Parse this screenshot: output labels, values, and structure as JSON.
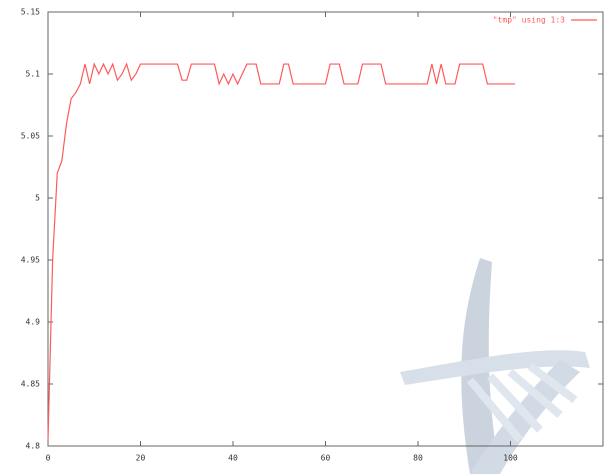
{
  "chart_data": {
    "type": "line",
    "series": [
      {
        "name": "\"tmp\" using 1:3",
        "color": "#ff5a5a",
        "x": [
          0,
          1,
          2,
          3,
          4,
          5,
          6,
          7,
          8,
          9,
          10,
          11,
          12,
          13,
          14,
          15,
          16,
          17,
          18,
          19,
          20,
          21,
          22,
          23,
          24,
          25,
          26,
          27,
          28,
          29,
          30,
          31,
          32,
          33,
          34,
          35,
          36,
          37,
          38,
          39,
          40,
          41,
          42,
          43,
          44,
          45,
          46,
          47,
          48,
          49,
          50,
          51,
          52,
          53,
          54,
          55,
          56,
          57,
          58,
          59,
          60,
          61,
          62,
          63,
          64,
          65,
          66,
          67,
          68,
          69,
          70,
          71,
          72,
          73,
          74,
          75,
          76,
          77,
          78,
          79,
          80,
          81,
          82,
          83,
          84,
          85,
          86,
          87,
          88,
          89,
          90,
          91,
          92,
          93,
          94,
          95,
          96,
          97,
          98,
          99,
          100,
          101
        ],
        "values": [
          4.805,
          4.95,
          5.02,
          5.03,
          5.06,
          5.08,
          5.085,
          5.092,
          5.108,
          5.092,
          5.108,
          5.1,
          5.108,
          5.1,
          5.108,
          5.095,
          5.1,
          5.108,
          5.095,
          5.1,
          5.108,
          5.108,
          5.108,
          5.108,
          5.108,
          5.108,
          5.108,
          5.108,
          5.108,
          5.095,
          5.095,
          5.108,
          5.108,
          5.108,
          5.108,
          5.108,
          5.108,
          5.092,
          5.1,
          5.092,
          5.1,
          5.092,
          5.1,
          5.108,
          5.108,
          5.108,
          5.092,
          5.092,
          5.092,
          5.092,
          5.092,
          5.108,
          5.108,
          5.092,
          5.092,
          5.092,
          5.092,
          5.092,
          5.092,
          5.092,
          5.092,
          5.108,
          5.108,
          5.108,
          5.092,
          5.092,
          5.092,
          5.092,
          5.108,
          5.108,
          5.108,
          5.108,
          5.108,
          5.092,
          5.092,
          5.092,
          5.092,
          5.092,
          5.092,
          5.092,
          5.092,
          5.092,
          5.092,
          5.108,
          5.092,
          5.108,
          5.092,
          5.092,
          5.092,
          5.108,
          5.108,
          5.108,
          5.108,
          5.108,
          5.108,
          5.092,
          5.092,
          5.092,
          5.092,
          5.092,
          5.092,
          5.092
        ]
      }
    ],
    "xlim": [
      0,
      120
    ],
    "xticks": [
      0,
      20,
      40,
      60,
      80,
      100
    ],
    "ylim": [
      4.8,
      5.15
    ],
    "yticks": [
      4.8,
      4.85,
      4.9,
      4.95,
      5,
      5.05,
      5.1,
      5.15
    ],
    "legend": "top-right"
  }
}
